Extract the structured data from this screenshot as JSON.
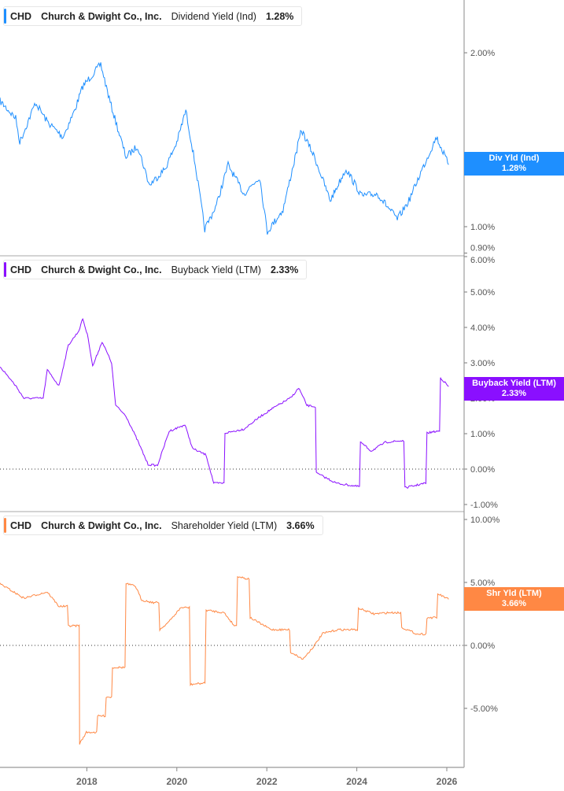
{
  "chart_data": [
    {
      "type": "line",
      "ticker": "CHD",
      "company": "Church & Dwight Co., Inc.",
      "metric": "Dividend Yield (Ind)",
      "last": "1.28%",
      "tag_label": "Div Yld (Ind)",
      "color": "#1e8fff",
      "scale": "log",
      "y_ticks": [
        "2.00%",
        "1.00%",
        "0.90%"
      ],
      "y_tick_values": [
        2.0,
        1.0,
        0.9
      ],
      "ylim": [
        0.88,
        2.3
      ],
      "x": [
        2016.07,
        2016.42,
        2016.51,
        2016.86,
        2017.12,
        2017.47,
        2017.73,
        2017.91,
        2018.31,
        2018.52,
        2018.87,
        2019.13,
        2019.39,
        2019.74,
        2020.0,
        2020.2,
        2020.41,
        2020.62,
        2020.88,
        2021.14,
        2021.49,
        2021.84,
        2022.01,
        2022.36,
        2022.77,
        2023.06,
        2023.41,
        2023.76,
        2024.11,
        2024.46,
        2024.9,
        2025.16,
        2025.42,
        2025.77,
        2026.04
      ],
      "values": [
        1.65,
        1.54,
        1.4,
        1.64,
        1.52,
        1.43,
        1.59,
        1.75,
        1.91,
        1.64,
        1.32,
        1.38,
        1.18,
        1.26,
        1.4,
        1.59,
        1.28,
        0.99,
        1.09,
        1.28,
        1.14,
        1.22,
        0.98,
        1.07,
        1.47,
        1.32,
        1.11,
        1.26,
        1.13,
        1.14,
        1.03,
        1.11,
        1.24,
        1.43,
        1.28
      ]
    },
    {
      "type": "line",
      "ticker": "CHD",
      "company": "Church & Dwight Co., Inc.",
      "metric": "Buyback Yield (LTM)",
      "last": "2.33%",
      "tag_label": "Buyback Yield (LTM)",
      "color": "#8a0fff",
      "y_ticks": [
        "6.00%",
        "5.00%",
        "4.00%",
        "3.00%",
        "2.00%",
        "1.00%",
        "0.00%",
        "-1.00%"
      ],
      "y_tick_values": [
        6,
        5,
        4,
        3,
        2,
        1,
        0,
        -1
      ],
      "ylim": [
        -1.2,
        6
      ],
      "x": [
        2016.07,
        2016.42,
        2016.6,
        2017.03,
        2017.12,
        2017.38,
        2017.59,
        2017.82,
        2017.91,
        2018.03,
        2018.13,
        2018.34,
        2018.55,
        2018.64,
        2018.87,
        2019.13,
        2019.36,
        2019.57,
        2019.83,
        2020.18,
        2020.35,
        2020.65,
        2020.82,
        2021.09,
        2021.49,
        2021.84,
        2022.1,
        2022.54,
        2022.71,
        2022.89,
        2023.06,
        2023.1,
        2023.55,
        2024.02,
        2024.08,
        2024.32,
        2024.64,
        2025.02,
        2025.07,
        2025.51,
        2025.56,
        2025.8,
        2025.86,
        2026.04
      ],
      "values": [
        2.9,
        2.35,
        2.0,
        2.0,
        2.8,
        2.35,
        3.5,
        3.9,
        4.25,
        3.7,
        2.9,
        3.6,
        3.0,
        1.8,
        1.5,
        0.8,
        0.13,
        0.1,
        1.07,
        1.25,
        0.58,
        0.4,
        -0.4,
        1.02,
        1.13,
        1.47,
        1.69,
        2.02,
        2.29,
        1.8,
        1.76,
        -0.11,
        -0.4,
        -0.49,
        0.76,
        0.51,
        0.76,
        0.8,
        -0.53,
        -0.4,
        1.02,
        1.07,
        2.58,
        2.33
      ]
    },
    {
      "type": "line",
      "ticker": "CHD",
      "company": "Church & Dwight Co., Inc.",
      "metric": "Shareholder Yield (LTM)",
      "last": "3.66%",
      "tag_label": "Shr Yld (LTM)",
      "color": "#ff8844",
      "y_ticks": [
        "10.00%",
        "5.00%",
        "0.00%",
        "-5.00%"
      ],
      "y_tick_values": [
        10,
        5,
        0,
        -5
      ],
      "ylim": [
        -9.6,
        10.6
      ],
      "x": [
        2016.07,
        2016.6,
        2017.12,
        2017.38,
        2017.61,
        2017.82,
        2017.84,
        2017.99,
        2018.26,
        2018.43,
        2018.57,
        2018.78,
        2018.87,
        2019.08,
        2019.22,
        2019.48,
        2019.62,
        2019.83,
        2020.09,
        2020.3,
        2020.58,
        2020.65,
        2021.05,
        2021.28,
        2021.35,
        2021.54,
        2021.63,
        2022.1,
        2022.57,
        2022.8,
        2023.06,
        2023.24,
        2023.59,
        2024.08,
        2024.38,
        2024.72,
        2025.02,
        2025.34,
        2025.56,
        2025.82,
        2026.04
      ],
      "values": [
        4.9,
        3.75,
        4.25,
        3.1,
        1.56,
        1.56,
        -7.8,
        -6.9,
        -5.6,
        -4.1,
        -1.75,
        -1.75,
        4.9,
        4.7,
        3.6,
        3.4,
        1.25,
        1.9,
        3.0,
        -3.1,
        -3.0,
        2.8,
        2.6,
        1.56,
        5.5,
        5.3,
        2.2,
        1.25,
        -0.6,
        -1.1,
        0,
        0.94,
        1.25,
        2.9,
        2.5,
        2.6,
        1.4,
        0.9,
        2.2,
        4.06,
        3.66
      ]
    }
  ],
  "x_axis": {
    "ticks": [
      "2018",
      "2020",
      "2022",
      "2024",
      "2026"
    ],
    "tick_values": [
      2018,
      2020,
      2022,
      2024,
      2026
    ],
    "xlim": [
      2016.07,
      2026.4
    ]
  }
}
